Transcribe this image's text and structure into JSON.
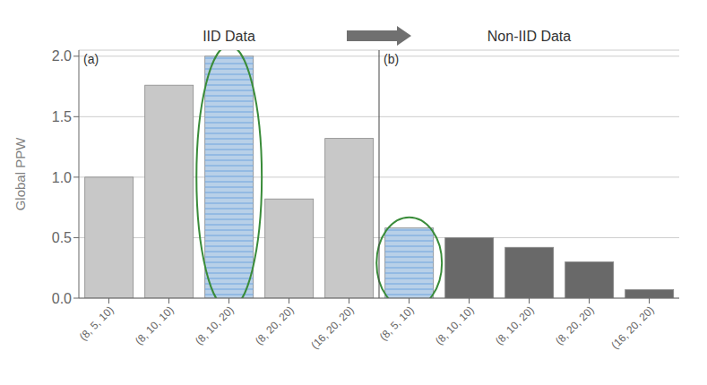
{
  "chart_data": {
    "type": "bar",
    "ylabel": "Global PPW",
    "categories": [
      "(8, 5, 10)",
      "(8, 10, 10)",
      "(8, 10, 20)",
      "(8, 20, 20)",
      "(16, 20, 20)",
      "(8, 5, 10)",
      "(8, 10, 10)",
      "(8, 10, 20)",
      "(8, 20, 20)",
      "(16, 20, 20)"
    ],
    "values": [
      1.0,
      1.76,
      2.0,
      0.82,
      1.32,
      0.58,
      0.5,
      0.42,
      0.3,
      0.07
    ],
    "colors": [
      "#c8c8c8",
      "#c8c8c8",
      "#b8d0e8",
      "#c8c8c8",
      "#c8c8c8",
      "#b8d0e8",
      "#696969",
      "#696969",
      "#696969",
      "#696969"
    ],
    "ylim": [
      0,
      2.05
    ],
    "yticks": [
      {
        "value": 0,
        "label": "0.0"
      },
      {
        "value": 0.5,
        "label": "0.5"
      },
      {
        "value": 1.0,
        "label": "1.0"
      },
      {
        "value": 1.5,
        "label": "1.5"
      },
      {
        "value": 2.0,
        "label": "2.0"
      }
    ],
    "grid": true,
    "annotations": [
      "IID Data",
      "Non-IID Data",
      "(a)",
      "(b)"
    ]
  }
}
